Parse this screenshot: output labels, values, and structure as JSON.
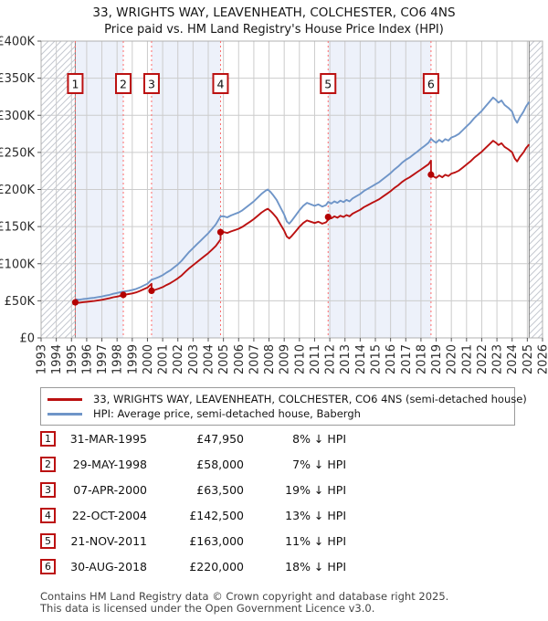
{
  "header": {
    "title": "33, WRIGHTS WAY, LEAVENHEATH, COLCHESTER, CO6 4NS",
    "subtitle": "Price paid vs. HM Land Registry's House Price Index (HPI)"
  },
  "legend": {
    "items": [
      {
        "label": "33, WRIGHTS WAY, LEAVENHEATH, COLCHESTER, CO6 4NS (semi-detached house)",
        "color": "#bb1111"
      },
      {
        "label": "HPI: Average price, semi-detached house, Babergh",
        "color": "#6f95c8"
      }
    ]
  },
  "footer": {
    "line1": "Contains HM Land Registry data © Crown copyright and database right 2025.",
    "line2": "This data is licensed under the Open Government Licence v3.0."
  },
  "chart_data": {
    "type": "line",
    "title": "33, WRIGHTS WAY, LEAVENHEATH, COLCHESTER, CO6 4NS — Price paid vs. HM Land Registry's House Price Index (HPI)",
    "xlabel": "",
    "ylabel": "",
    "xlim": [
      1993,
      2026
    ],
    "ylim_thousands": [
      0,
      400
    ],
    "y_unit": "£ thousands",
    "grid": true,
    "legend_position": "below",
    "x_tick_labels": [
      "1993",
      "1994",
      "1995",
      "1996",
      "1997",
      "1998",
      "1999",
      "2000",
      "2001",
      "2002",
      "2003",
      "2004",
      "2005",
      "2006",
      "2007",
      "2008",
      "2009",
      "2010",
      "2011",
      "2012",
      "2013",
      "2014",
      "2015",
      "2016",
      "2017",
      "2018",
      "2019",
      "2020",
      "2021",
      "2022",
      "2023",
      "2024",
      "2025",
      "2026"
    ],
    "y_ticks": [
      {
        "v": 0,
        "label": "£0"
      },
      {
        "v": 50,
        "label": "£50K"
      },
      {
        "v": 100,
        "label": "£100K"
      },
      {
        "v": 150,
        "label": "£150K"
      },
      {
        "v": 200,
        "label": "£200K"
      },
      {
        "v": 250,
        "label": "£250K"
      },
      {
        "v": 300,
        "label": "£300K"
      },
      {
        "v": 350,
        "label": "£350K"
      },
      {
        "v": 400,
        "label": "£400K"
      }
    ],
    "series": [
      {
        "name": "HPI: Average price, semi-detached house, Babergh",
        "color": "#6f95c8",
        "x": [
          1995.25,
          1995.5,
          1995.75,
          1996.0,
          1996.25,
          1996.5,
          1996.75,
          1997.0,
          1997.25,
          1997.5,
          1997.75,
          1998.0,
          1998.25,
          1998.41,
          1998.6,
          1998.75,
          1999.0,
          1999.25,
          1999.5,
          1999.75,
          2000.0,
          2000.27,
          2000.5,
          2000.75,
          2001.0,
          2001.25,
          2001.5,
          2001.75,
          2002.0,
          2002.25,
          2002.5,
          2002.75,
          2003.0,
          2003.25,
          2003.5,
          2003.75,
          2004.0,
          2004.25,
          2004.5,
          2004.81,
          2005.0,
          2005.25,
          2005.5,
          2005.75,
          2006.0,
          2006.25,
          2006.5,
          2006.75,
          2007.0,
          2007.25,
          2007.5,
          2007.75,
          2007.92,
          2008.08,
          2008.25,
          2008.5,
          2008.75,
          2009.0,
          2009.17,
          2009.33,
          2009.5,
          2009.75,
          2010.0,
          2010.25,
          2010.5,
          2010.75,
          2011.0,
          2011.25,
          2011.5,
          2011.75,
          2011.89,
          2012.1,
          2012.3,
          2012.5,
          2012.7,
          2012.9,
          2013.1,
          2013.3,
          2013.5,
          2013.75,
          2014.0,
          2014.25,
          2014.5,
          2014.75,
          2015.0,
          2015.25,
          2015.5,
          2015.75,
          2016.0,
          2016.25,
          2016.5,
          2016.75,
          2017.0,
          2017.25,
          2017.5,
          2017.75,
          2018.0,
          2018.25,
          2018.5,
          2018.66,
          2018.85,
          2019.0,
          2019.2,
          2019.4,
          2019.6,
          2019.8,
          2020.0,
          2020.25,
          2020.5,
          2020.75,
          2021.0,
          2021.25,
          2021.5,
          2021.75,
          2022.0,
          2022.25,
          2022.5,
          2022.75,
          2022.92,
          2023.1,
          2023.3,
          2023.5,
          2023.75,
          2024.0,
          2024.17,
          2024.33,
          2024.5,
          2024.75,
          2024.92,
          2025.12
        ],
        "y_thousands": [
          52.1,
          51.5,
          52.3,
          52.8,
          53.5,
          54,
          55,
          55.8,
          57,
          58,
          59.5,
          60.5,
          61.8,
          62.4,
          63,
          63.5,
          64.5,
          66,
          68,
          70.5,
          73,
          78.4,
          80,
          82,
          84.5,
          88,
          91,
          95,
          99,
          104,
          110,
          116,
          121,
          126,
          131,
          136,
          141,
          147,
          153,
          163.8,
          164,
          162.5,
          165,
          167,
          169,
          172,
          176,
          180,
          184,
          189,
          194,
          198,
          200,
          197,
          193,
          186,
          176,
          166,
          157,
          154,
          158,
          165,
          172,
          178,
          182,
          180,
          178,
          180,
          177,
          179,
          183.1,
          181,
          184,
          182,
          185,
          183,
          186,
          184,
          188,
          191,
          194,
          198,
          201,
          204,
          207,
          210,
          214,
          218,
          222,
          227,
          231,
          236,
          240,
          243,
          247,
          251,
          255,
          259,
          263,
          268.3,
          265,
          263,
          267,
          264,
          268,
          266,
          270,
          272,
          275,
          280,
          285,
          290,
          296,
          301,
          306,
          312,
          318,
          324,
          321,
          317,
          320,
          314,
          310,
          305,
          295,
          290,
          297,
          305,
          312,
          318
        ]
      },
      {
        "name": "33, WRIGHTS WAY, LEAVENHEATH, COLCHESTER, CO6 4NS (semi-detached house)",
        "color": "#bb1111",
        "derivation": "HPI series rescaled within each ownership period so it passes through each recorded sale price (vertical step at every sale date)"
      }
    ],
    "sales": [
      {
        "n": 1,
        "date": "31-MAR-1995",
        "year": 1995.25,
        "price": 47950,
        "price_label": "£47,950",
        "pct_label": "8% ↓ HPI"
      },
      {
        "n": 2,
        "date": "29-MAY-1998",
        "year": 1998.41,
        "price": 58000,
        "price_label": "£58,000",
        "pct_label": "7% ↓ HPI"
      },
      {
        "n": 3,
        "date": "07-APR-2000",
        "year": 2000.27,
        "price": 63500,
        "price_label": "£63,500",
        "pct_label": "19% ↓ HPI"
      },
      {
        "n": 4,
        "date": "22-OCT-2004",
        "year": 2004.81,
        "price": 142500,
        "price_label": "£142,500",
        "pct_label": "13% ↓ HPI"
      },
      {
        "n": 5,
        "date": "21-NOV-2011",
        "year": 2011.89,
        "price": 163000,
        "price_label": "£163,000",
        "pct_label": "11% ↓ HPI"
      },
      {
        "n": 6,
        "date": "30-AUG-2018",
        "year": 2018.66,
        "price": 220000,
        "price_label": "£220,000",
        "pct_label": "18% ↓ HPI"
      }
    ],
    "data_end_year": 2025.12,
    "ownership_bands": [
      [
        1995.25,
        1998.41
      ],
      [
        2000.27,
        2004.81
      ],
      [
        2011.89,
        2018.66
      ]
    ],
    "no_data_hatch": [
      [
        1993,
        1995.25
      ],
      [
        2025.12,
        2026
      ]
    ],
    "colors": {
      "band_fill": "#edf1fa",
      "grid": "#cccccc",
      "plot_border": "#b0b0b0",
      "hatch_line": "#c4c8d0",
      "hatch_edge": "#808080",
      "sale_dash": "#ff6b6b",
      "sale_dot": "#b40000",
      "marker_box_border": "#bb1111",
      "tick_text": "#2a2a2a"
    }
  }
}
